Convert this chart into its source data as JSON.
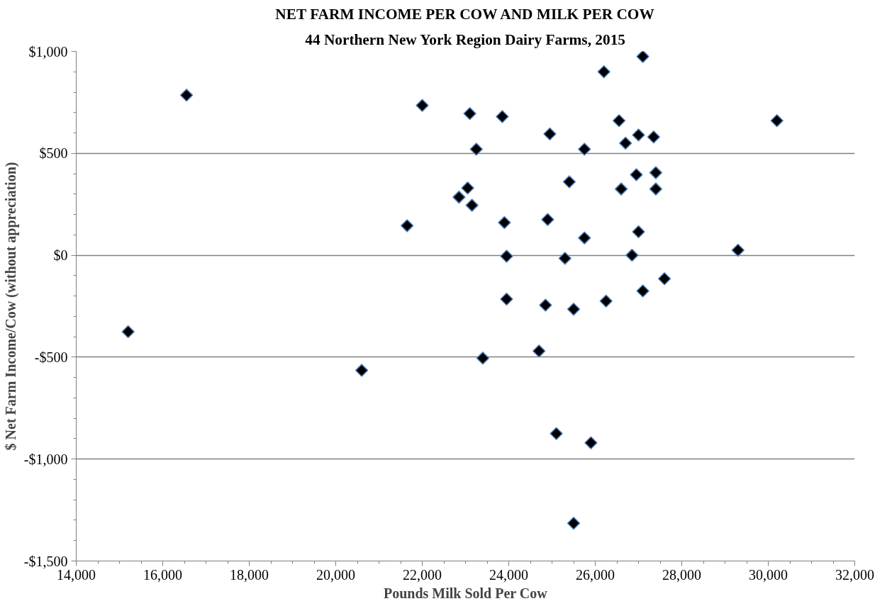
{
  "chart_data": {
    "type": "scatter",
    "title": "NET FARM INCOME PER COW AND MILK PER COW",
    "subtitle": "44 Northern New York Region Dairy Farms, 2015",
    "xlabel": "Pounds Milk Sold Per Cow",
    "ylabel": "$ Net Farm Income/Cow (without appreciation)",
    "marker": "diamond",
    "grid": "y",
    "xlim": [
      14000,
      32000
    ],
    "xticks": [
      {
        "value": 14000,
        "label": "14,000"
      },
      {
        "value": 16000,
        "label": "16,000"
      },
      {
        "value": 18000,
        "label": "18,000"
      },
      {
        "value": 20000,
        "label": "20,000"
      },
      {
        "value": 22000,
        "label": "22,000"
      },
      {
        "value": 24000,
        "label": "24,000"
      },
      {
        "value": 26000,
        "label": "26,000"
      },
      {
        "value": 28000,
        "label": "28,000"
      },
      {
        "value": 30000,
        "label": "30,000"
      },
      {
        "value": 32000,
        "label": "32,000"
      }
    ],
    "ylim": [
      -1500,
      1000
    ],
    "yticks": [
      {
        "value": -1500,
        "label": "-$1,500"
      },
      {
        "value": -1000,
        "label": "-$1,000"
      },
      {
        "value": -500,
        "label": "-$500"
      },
      {
        "value": 0,
        "label": "$0"
      },
      {
        "value": 500,
        "label": "$500"
      },
      {
        "value": 1000,
        "label": "$1,000"
      }
    ],
    "series": [
      {
        "color": "#000000",
        "x": [
          16550,
          22000,
          21650,
          22850,
          27100,
          26200,
          23100,
          23850,
          24950,
          26550,
          26700,
          27000,
          27350,
          30200,
          23250,
          25750,
          25400,
          23050,
          23150,
          26950,
          27400,
          26600,
          27400,
          23900,
          24900,
          25750,
          27000,
          23950,
          25300,
          26850,
          29300,
          27600,
          23950,
          24850,
          25500,
          26250,
          27100,
          23400,
          24700,
          25100,
          25900,
          25500,
          15200,
          20600
        ],
        "values": [
          785,
          735,
          145,
          285,
          975,
          900,
          695,
          680,
          595,
          660,
          550,
          590,
          580,
          660,
          520,
          520,
          360,
          330,
          245,
          395,
          405,
          325,
          325,
          160,
          175,
          85,
          115,
          -5,
          -15,
          0,
          25,
          -115,
          -215,
          -245,
          -265,
          -225,
          -175,
          -505,
          -470,
          -875,
          -920,
          -1315,
          -375,
          -565
        ]
      }
    ]
  }
}
